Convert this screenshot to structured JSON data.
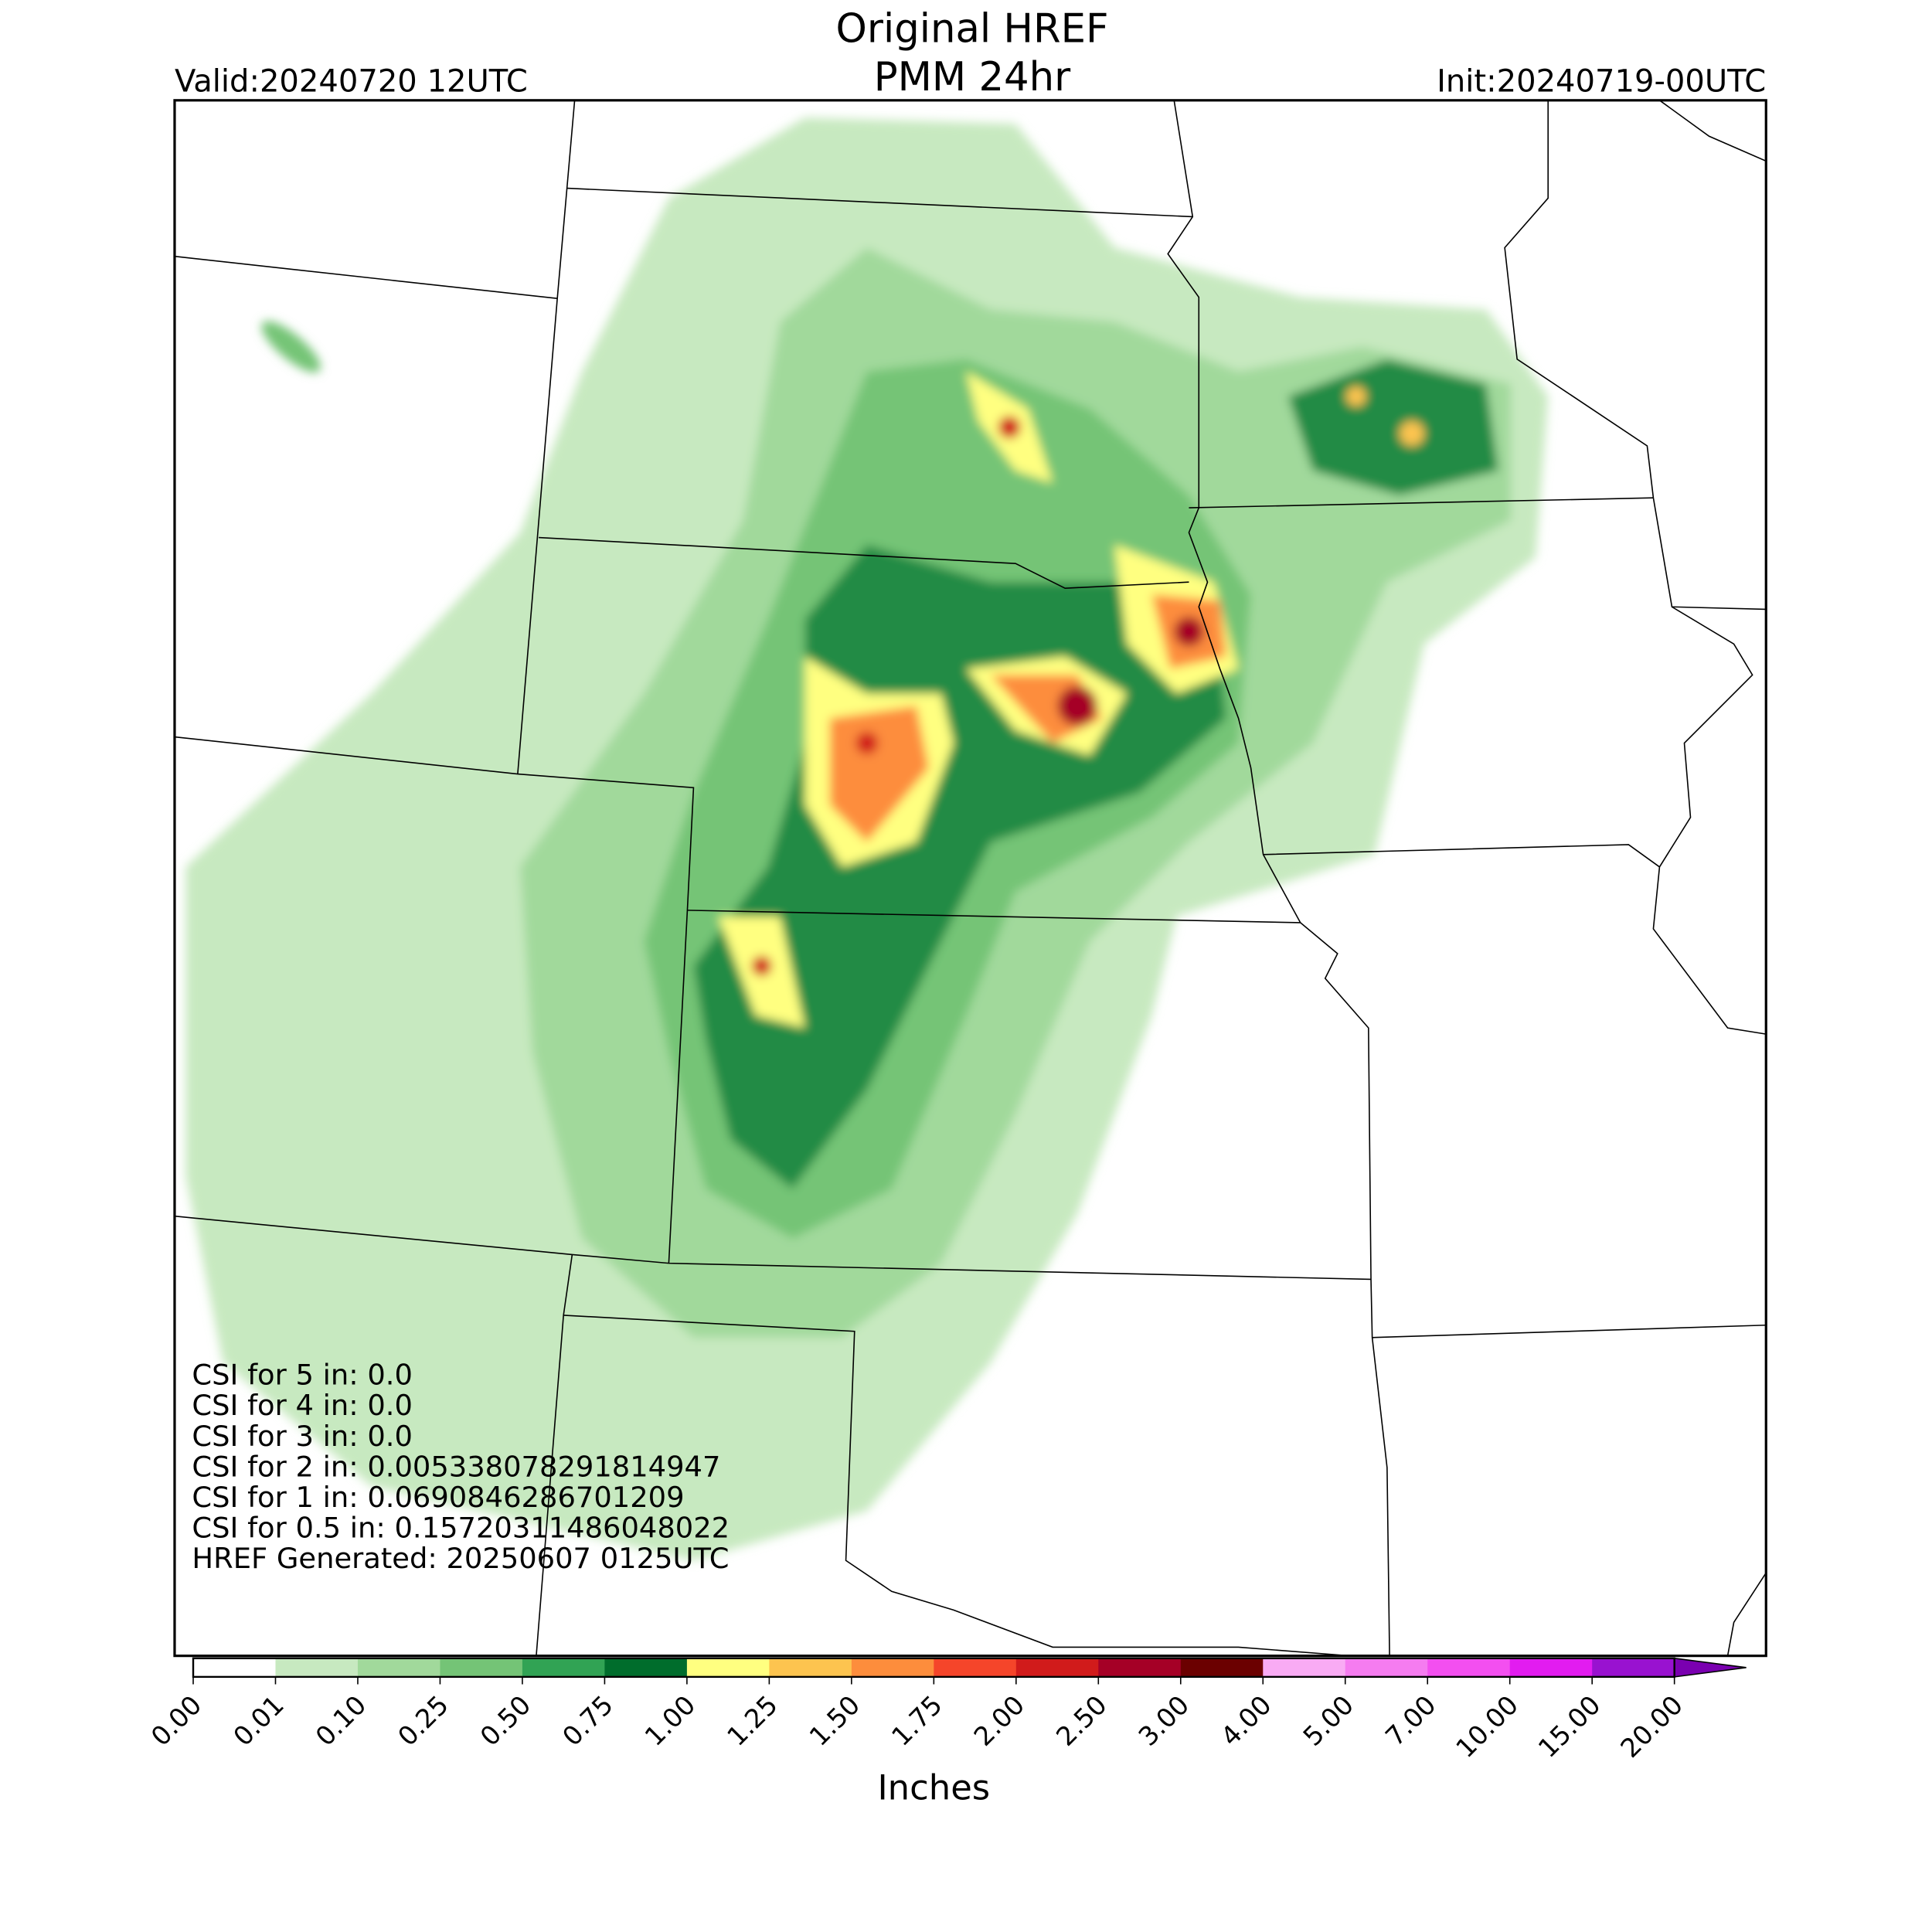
{
  "header": {
    "title_lines": [
      "Original HREF",
      "PMM 24hr"
    ],
    "valid": "Valid:20240720 12UTC",
    "init": "Init:20240719-00UTC"
  },
  "stats": [
    "CSI for 5 in: 0.0",
    "CSI for 4 in: 0.0",
    "CSI for 3 in: 0.0",
    "CSI for 2 in: 0.005338078291814947",
    "CSI for 1 in: 0.0690846286701209",
    "CSI for 0.5 in: 0.15720311486048022",
    "HREF Generated: 20250607 0125UTC"
  ],
  "colorbar": {
    "title": "Inches",
    "labels": [
      "0.00",
      "0.01",
      "0.10",
      "0.25",
      "0.50",
      "0.75",
      "1.00",
      "1.25",
      "1.50",
      "1.75",
      "2.00",
      "2.50",
      "3.00",
      "4.00",
      "5.00",
      "7.00",
      "10.00",
      "15.00",
      "20.00"
    ],
    "colors": [
      "#ffffff",
      "#c7e9c0",
      "#a1d99b",
      "#74c476",
      "#31a354",
      "#006d2c",
      "#ffff80",
      "#fdc44f",
      "#fd8d3c",
      "#f5452a",
      "#d11b1b",
      "#a50026",
      "#6b0000",
      "#f9abf4",
      "#f57cf0",
      "#f34ff0",
      "#e21cf0",
      "#9912d0"
    ],
    "extend_color": "#7a00b0"
  }
}
